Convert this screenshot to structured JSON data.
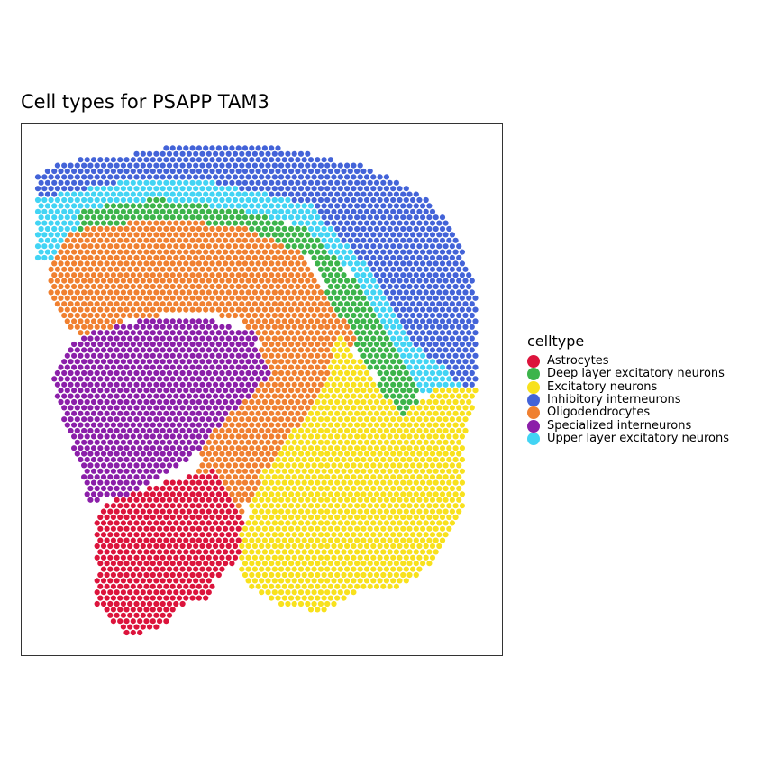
{
  "chart_data": {
    "type": "scatter",
    "title": "Cell types for PSAPP TAM3",
    "legend_title": "celltype",
    "legend_position": "right",
    "axes_visible": false,
    "grid": false,
    "categories": [
      {
        "name": "Astrocytes",
        "color": "#dc143c"
      },
      {
        "name": "Deep layer excitatory neurons",
        "color": "#3cb44b"
      },
      {
        "name": "Excitatory neurons",
        "color": "#f8e11d"
      },
      {
        "name": "Inhibitory interneurons",
        "color": "#4363d8"
      },
      {
        "name": "Oligodendrocytes",
        "color": "#f08030"
      },
      {
        "name": "Specialized interneurons",
        "color": "#8b1fa9"
      },
      {
        "name": "Upper layer excitatory neurons",
        "color": "#42d4f4"
      }
    ],
    "region_outlines": {
      "Inhibitory interneurons": [
        [
          0.35,
          0.035
        ],
        [
          0.55,
          0.045
        ],
        [
          0.72,
          0.08
        ],
        [
          0.85,
          0.14
        ],
        [
          0.91,
          0.22
        ],
        [
          0.95,
          0.32
        ],
        [
          0.95,
          0.49
        ],
        [
          0.82,
          0.5
        ],
        [
          0.74,
          0.3
        ],
        [
          0.6,
          0.15
        ],
        [
          0.4,
          0.11
        ],
        [
          0.2,
          0.11
        ],
        [
          0.06,
          0.14
        ],
        [
          0.02,
          0.17
        ],
        [
          0.02,
          0.1
        ],
        [
          0.08,
          0.07
        ],
        [
          0.2,
          0.06
        ]
      ],
      "Upper layer excitatory neurons": [
        [
          0.02,
          0.14
        ],
        [
          0.2,
          0.11
        ],
        [
          0.4,
          0.11
        ],
        [
          0.6,
          0.15
        ],
        [
          0.73,
          0.28
        ],
        [
          0.81,
          0.41
        ],
        [
          0.88,
          0.46
        ],
        [
          0.92,
          0.5
        ],
        [
          0.83,
          0.51
        ],
        [
          0.76,
          0.4
        ],
        [
          0.7,
          0.29
        ],
        [
          0.58,
          0.19
        ],
        [
          0.4,
          0.16
        ],
        [
          0.2,
          0.16
        ],
        [
          0.12,
          0.19
        ],
        [
          0.09,
          0.25
        ],
        [
          0.02,
          0.26
        ]
      ],
      "Deep layer excitatory neurons": [
        [
          0.12,
          0.16
        ],
        [
          0.28,
          0.14
        ],
        [
          0.45,
          0.16
        ],
        [
          0.6,
          0.2
        ],
        [
          0.7,
          0.3
        ],
        [
          0.77,
          0.41
        ],
        [
          0.83,
          0.5
        ],
        [
          0.82,
          0.55
        ],
        [
          0.8,
          0.62
        ],
        [
          0.77,
          0.57
        ],
        [
          0.74,
          0.48
        ],
        [
          0.66,
          0.36
        ],
        [
          0.6,
          0.25
        ],
        [
          0.45,
          0.2
        ],
        [
          0.28,
          0.19
        ],
        [
          0.12,
          0.21
        ]
      ],
      "Oligodendrocytes": [
        [
          0.1,
          0.2
        ],
        [
          0.28,
          0.18
        ],
        [
          0.45,
          0.19
        ],
        [
          0.58,
          0.24
        ],
        [
          0.64,
          0.34
        ],
        [
          0.7,
          0.4
        ],
        [
          0.63,
          0.53
        ],
        [
          0.55,
          0.63
        ],
        [
          0.46,
          0.72
        ],
        [
          0.45,
          0.81
        ],
        [
          0.39,
          0.78
        ],
        [
          0.35,
          0.7
        ],
        [
          0.4,
          0.54
        ],
        [
          0.5,
          0.42
        ],
        [
          0.46,
          0.37
        ],
        [
          0.35,
          0.35
        ],
        [
          0.22,
          0.37
        ],
        [
          0.15,
          0.4
        ],
        [
          0.1,
          0.39
        ],
        [
          0.06,
          0.33
        ],
        [
          0.06,
          0.27
        ]
      ],
      "Specialized interneurons": [
        [
          0.12,
          0.4
        ],
        [
          0.24,
          0.37
        ],
        [
          0.35,
          0.36
        ],
        [
          0.48,
          0.39
        ],
        [
          0.52,
          0.47
        ],
        [
          0.43,
          0.55
        ],
        [
          0.35,
          0.63
        ],
        [
          0.28,
          0.67
        ],
        [
          0.22,
          0.7
        ],
        [
          0.14,
          0.71
        ],
        [
          0.12,
          0.64
        ],
        [
          0.08,
          0.54
        ],
        [
          0.06,
          0.47
        ]
      ],
      "Excitatory neurons": [
        [
          0.66,
          0.38
        ],
        [
          0.7,
          0.44
        ],
        [
          0.79,
          0.55
        ],
        [
          0.86,
          0.5
        ],
        [
          0.95,
          0.49
        ],
        [
          0.92,
          0.6
        ],
        [
          0.92,
          0.73
        ],
        [
          0.86,
          0.82
        ],
        [
          0.78,
          0.88
        ],
        [
          0.7,
          0.88
        ],
        [
          0.62,
          0.92
        ],
        [
          0.52,
          0.9
        ],
        [
          0.46,
          0.86
        ],
        [
          0.45,
          0.79
        ],
        [
          0.5,
          0.66
        ],
        [
          0.58,
          0.56
        ],
        [
          0.64,
          0.47
        ]
      ],
      "Astrocytes": [
        [
          0.16,
          0.72
        ],
        [
          0.28,
          0.68
        ],
        [
          0.4,
          0.65
        ],
        [
          0.46,
          0.74
        ],
        [
          0.45,
          0.82
        ],
        [
          0.4,
          0.86
        ],
        [
          0.4,
          0.89
        ],
        [
          0.32,
          0.91
        ],
        [
          0.31,
          0.94
        ],
        [
          0.25,
          0.96
        ],
        [
          0.22,
          0.96
        ],
        [
          0.18,
          0.93
        ],
        [
          0.15,
          0.9
        ],
        [
          0.16,
          0.84
        ],
        [
          0.15,
          0.78
        ]
      ]
    }
  }
}
